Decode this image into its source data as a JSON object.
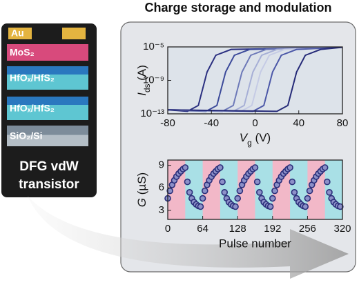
{
  "title": "Charge storage and modulation",
  "device": {
    "layers": [
      {
        "label": "Au",
        "color": "#e4b440"
      },
      {
        "label": "MoS₂",
        "color": "#d84a7c"
      },
      {
        "label": "HfOₓ/HfS₂",
        "color": "#3f9fcf"
      },
      {
        "label": "HfOₓ/HfS₂",
        "color": "#3f9fcf"
      },
      {
        "label": "SiO₂/Si",
        "color": "#8a9aa8"
      }
    ],
    "caption": [
      "DFG vdW",
      "transistor"
    ]
  },
  "chart_data": [
    {
      "type": "line",
      "log_y": true,
      "x_label": {
        "symbol": "V",
        "sub": "g",
        "unit": " (V)"
      },
      "y_label": {
        "symbol": "I",
        "sub": "ds",
        "unit": " (A)"
      },
      "xlim": [
        -80,
        80
      ],
      "xticks": [
        -80,
        -40,
        0,
        40,
        80
      ],
      "ylim": [
        1e-13,
        1e-05
      ],
      "yticks": [
        {
          "value": 1e-13,
          "label": "10⁻¹³"
        },
        {
          "value": 1e-09,
          "label": "10⁻⁹"
        },
        {
          "value": 1e-05,
          "label": "10⁻⁵"
        }
      ],
      "series": [
        {
          "color": "#2a2f80",
          "x": [
            -80,
            -62,
            -52,
            -48,
            -44,
            -36,
            -22,
            80
          ],
          "values": [
            3e-13,
            2e-13,
            1e-12,
            1e-10,
            1e-08,
            1e-06,
            5e-06,
            9e-06
          ]
        },
        {
          "color": "#3b4a9a",
          "x": [
            -80,
            -45,
            -35,
            -31,
            -27,
            -19,
            -5,
            80
          ],
          "values": [
            3e-13,
            2e-13,
            1e-12,
            1e-10,
            1e-08,
            1e-06,
            5e-06,
            9e-06
          ]
        },
        {
          "color": "#6d79b8",
          "x": [
            -80,
            -30,
            -20,
            -16,
            -12,
            -4,
            10,
            80
          ],
          "values": [
            3e-13,
            2e-13,
            1e-12,
            1e-10,
            1e-08,
            1e-06,
            5e-06,
            9e-06
          ]
        },
        {
          "color": "#a6afd6",
          "x": [
            -80,
            -20,
            -10,
            -6,
            -2,
            6,
            20,
            80
          ],
          "values": [
            3e-13,
            2e-13,
            1e-12,
            1e-10,
            1e-08,
            1e-06,
            5e-06,
            9e-06
          ]
        },
        {
          "color": "#c5cbe5",
          "x": [
            -80,
            -13,
            -3,
            1,
            5,
            13,
            27,
            80
          ],
          "values": [
            3e-13,
            2e-13,
            1e-12,
            1e-10,
            1e-08,
            1e-06,
            5e-06,
            9e-06
          ]
        },
        {
          "color": "#4c58a8",
          "x": [
            -80,
            -2,
            8,
            12,
            16,
            24,
            38,
            80
          ],
          "values": [
            3e-13,
            2e-13,
            1e-12,
            1e-10,
            1e-08,
            1e-06,
            5e-06,
            9e-06
          ]
        },
        {
          "color": "#252a78",
          "x": [
            -80,
            20,
            30,
            34,
            38,
            46,
            60,
            80
          ],
          "values": [
            3e-13,
            2e-13,
            1e-12,
            1e-10,
            1e-08,
            1e-06,
            5e-06,
            9e-06
          ]
        }
      ]
    },
    {
      "type": "scatter",
      "x_label": "Pulse number",
      "y_label": {
        "symbol": "G",
        "unit": " (µS)"
      },
      "xlim": [
        0,
        320
      ],
      "xticks": [
        0,
        64,
        128,
        192,
        256,
        320
      ],
      "ylim": [
        1.8,
        9.7
      ],
      "yticks": [
        3,
        6,
        9
      ],
      "color": "#2b2f7a",
      "x": [
        0,
        4,
        8,
        12,
        16,
        20,
        24,
        28,
        32,
        36,
        40,
        44,
        48,
        52,
        56,
        60,
        64,
        68,
        72,
        76,
        80,
        84,
        88,
        92,
        96,
        100,
        104,
        108,
        112,
        116,
        120,
        124,
        128,
        132,
        136,
        140,
        144,
        148,
        152,
        156,
        160,
        164,
        168,
        172,
        176,
        180,
        184,
        188,
        192,
        196,
        200,
        204,
        208,
        212,
        216,
        220,
        224,
        228,
        232,
        236,
        240,
        244,
        248,
        252,
        256,
        260,
        264,
        268,
        272,
        276,
        280,
        284,
        288,
        292,
        296,
        300,
        304,
        308,
        312,
        316
      ],
      "values": [
        4.6,
        5.6,
        6.4,
        7.0,
        7.5,
        7.9,
        8.2,
        8.5,
        8.7,
        6.8,
        5.4,
        4.6,
        4.1,
        3.8,
        3.6,
        3.5,
        4.6,
        5.6,
        6.4,
        7.0,
        7.5,
        7.9,
        8.2,
        8.5,
        8.7,
        6.8,
        5.4,
        4.6,
        4.1,
        3.8,
        3.6,
        3.5,
        4.6,
        5.6,
        6.4,
        7.0,
        7.5,
        7.9,
        8.2,
        8.5,
        8.7,
        6.8,
        5.4,
        4.6,
        4.1,
        3.8,
        3.6,
        3.5,
        4.6,
        5.6,
        6.4,
        7.0,
        7.5,
        7.9,
        8.2,
        8.5,
        8.7,
        6.8,
        5.4,
        4.6,
        4.1,
        3.8,
        3.6,
        3.5,
        4.6,
        5.6,
        6.4,
        7.0,
        7.5,
        7.9,
        8.2,
        8.5,
        8.7,
        6.8,
        5.4,
        4.6,
        4.1,
        3.8,
        3.6,
        3.5
      ]
    }
  ]
}
